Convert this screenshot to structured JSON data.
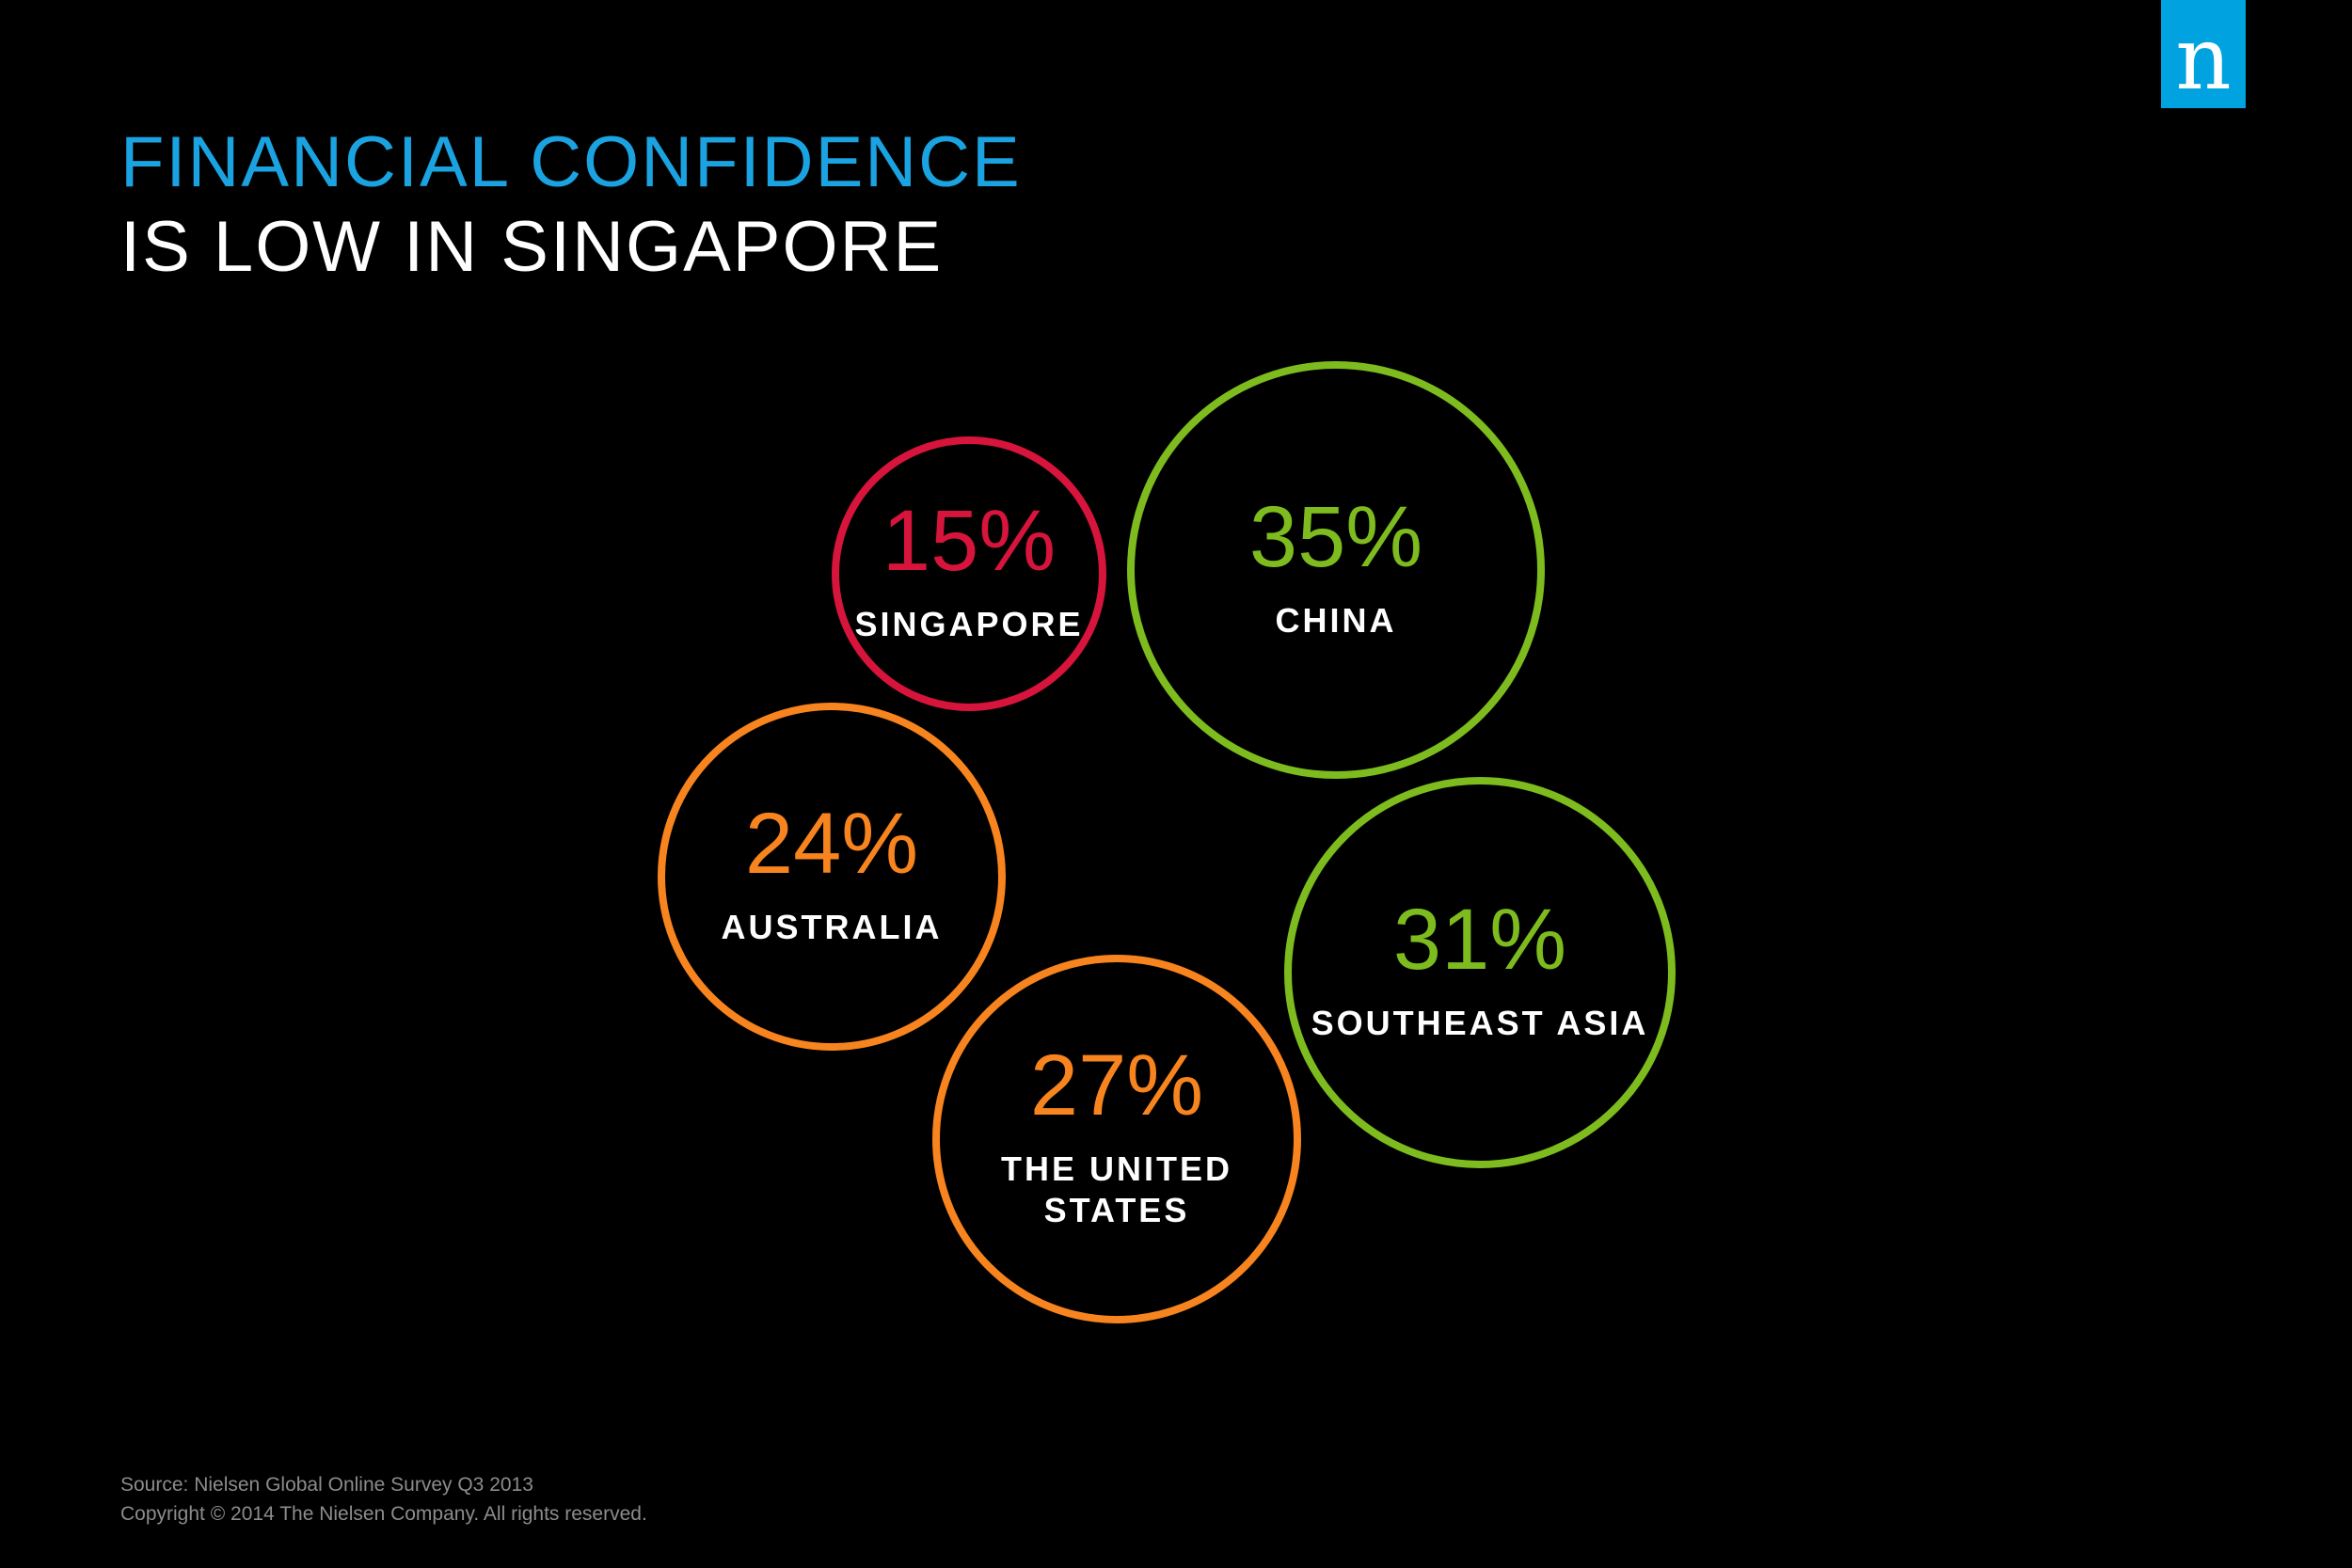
{
  "logo": {
    "letter": "n",
    "color": "#00a3e0"
  },
  "title": {
    "line1": "FINANCIAL CONFIDENCE",
    "line2": "IS LOW IN SINGAPORE",
    "line1_color": "#1aa3e0",
    "line2_color": "#ffffff"
  },
  "chart_data": {
    "type": "bubble",
    "title": "FINANCIAL CONFIDENCE IS LOW IN SINGAPORE",
    "unit": "%",
    "items": [
      {
        "label": "SINGAPORE",
        "value": 15,
        "value_text": "15%",
        "color": "#d6143c"
      },
      {
        "label": "CHINA",
        "value": 35,
        "value_text": "35%",
        "color": "#7dbb1e"
      },
      {
        "label": "AUSTRALIA",
        "value": 24,
        "value_text": "24%",
        "color": "#f7841e"
      },
      {
        "label": "SOUTHEAST ASIA",
        "value": 31,
        "value_text": "31%",
        "color": "#7dbb1e"
      },
      {
        "label": "THE UNITED STATES",
        "label_lines": [
          "THE UNITED",
          "STATES"
        ],
        "value": 27,
        "value_text": "27%",
        "color": "#f7841e"
      }
    ]
  },
  "footer": {
    "source": "Source: Nielsen Global Online Survey Q3 2013",
    "copyright": "Copyright © 2014 The Nielsen Company. All rights reserved."
  }
}
